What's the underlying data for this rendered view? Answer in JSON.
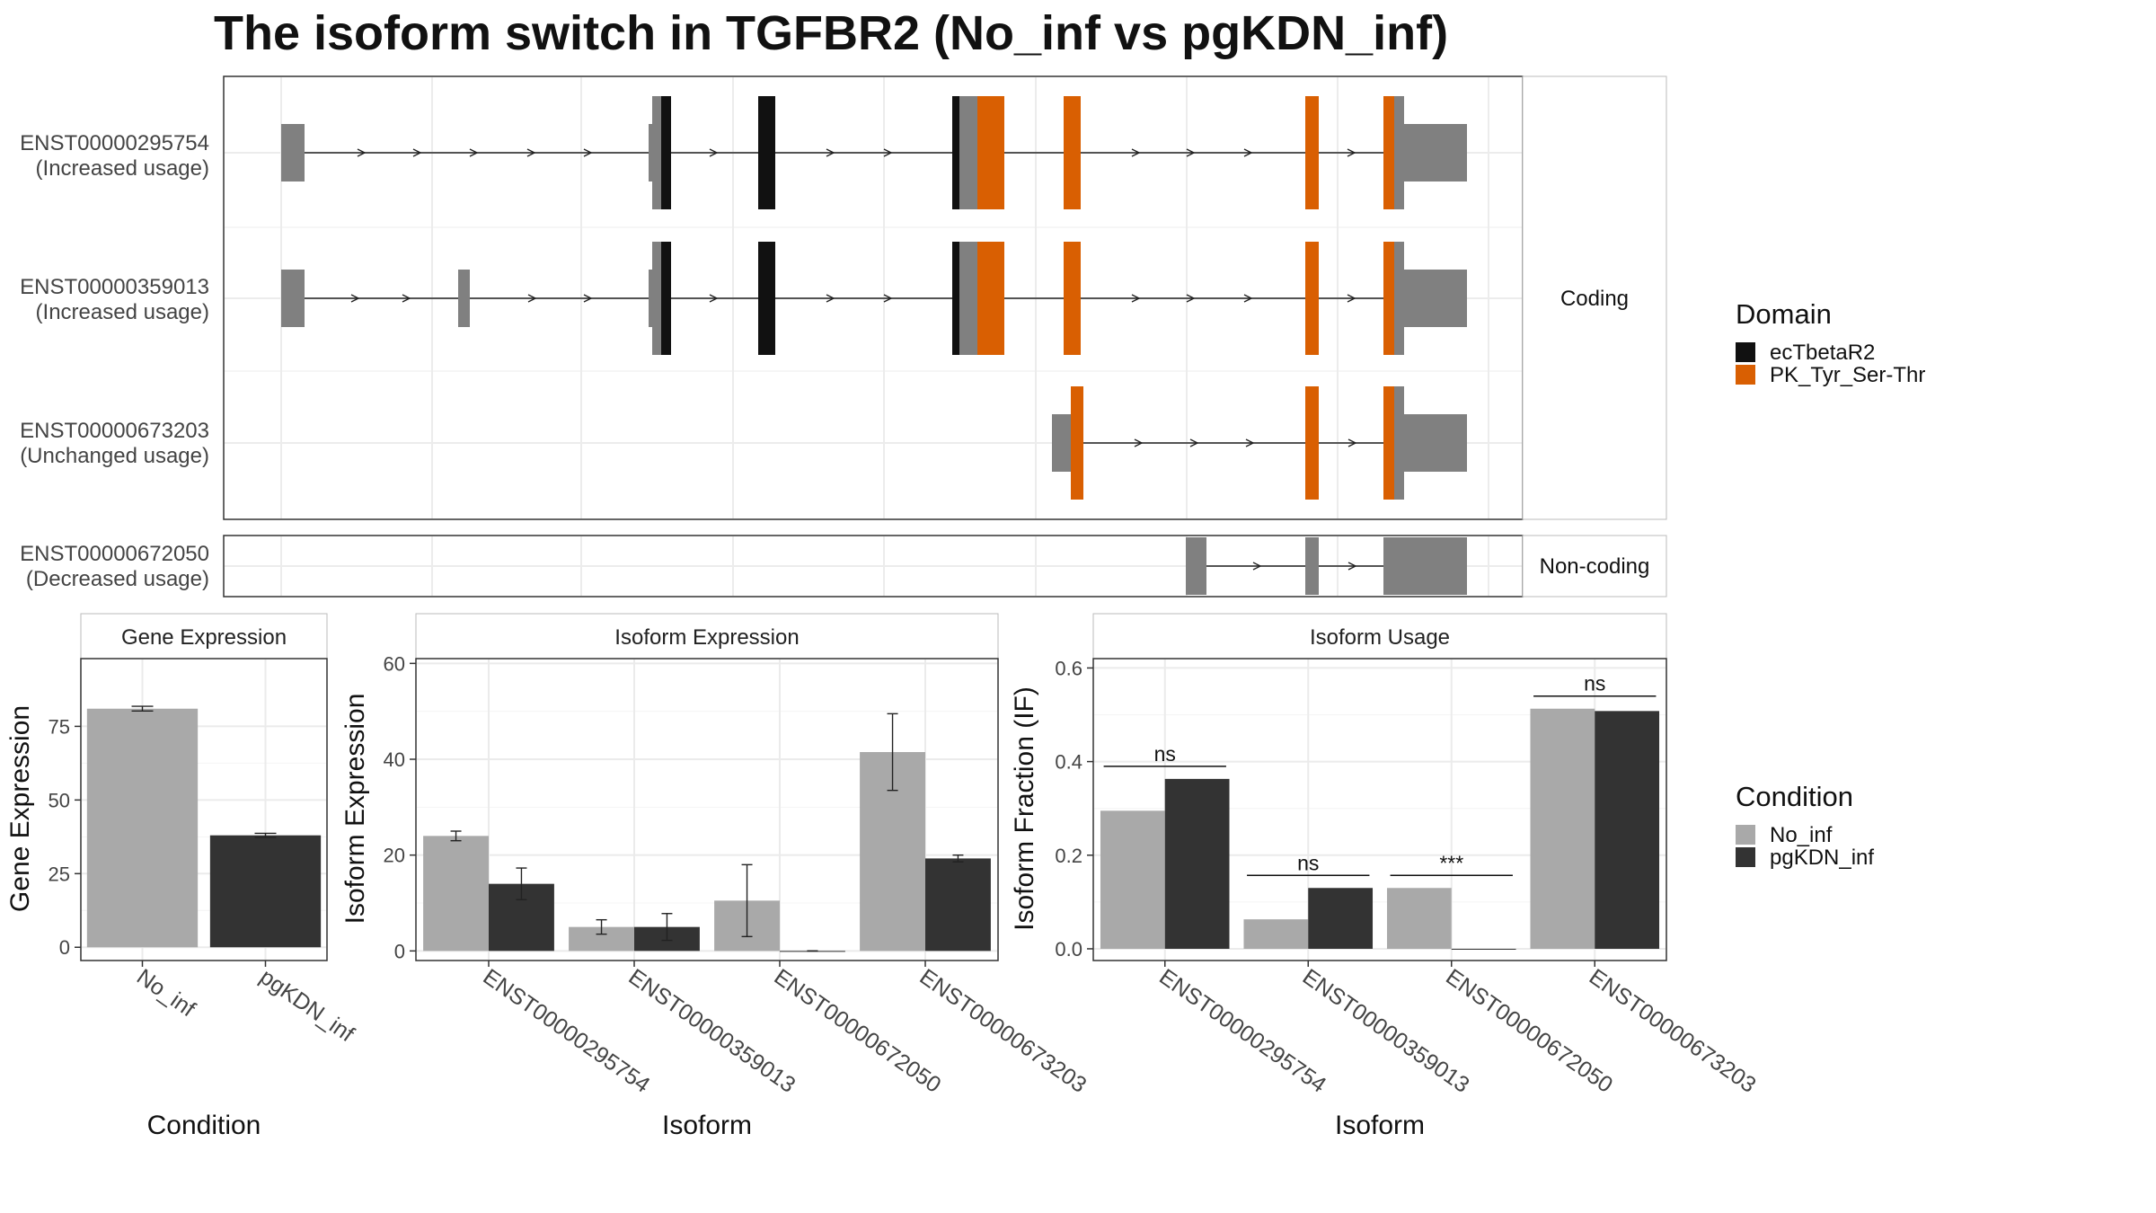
{
  "title": "The isoform switch in TGFBR2 (No_inf vs pgKDN_inf)",
  "colors": {
    "no_inf": "#A9A9A9",
    "pgkdn_inf": "#333333",
    "utr": "#808080",
    "ecTbetaR2": "#111111",
    "PK_Tyr_Ser_Thr": "#D95F02"
  },
  "structure": {
    "coding_strip": "Coding",
    "noncoding_strip": "Non-coding",
    "domain_legend_title": "Domain",
    "domains": [
      "ecTbetaR2",
      "PK_Tyr_Ser-Thr"
    ],
    "isoforms": [
      {
        "id": "ENST00000295754",
        "status": "(Increased usage)",
        "group": "coding"
      },
      {
        "id": "ENST00000359013",
        "status": "(Increased usage)",
        "group": "coding"
      },
      {
        "id": "ENST00000673203",
        "status": "(Unchanged usage)",
        "group": "coding"
      },
      {
        "id": "ENST00000672050",
        "status": "(Decreased usage)",
        "group": "noncoding"
      }
    ]
  },
  "condition_legend": {
    "title": "Condition",
    "items": [
      "No_inf",
      "pgKDN_inf"
    ]
  },
  "chart_data": [
    {
      "type": "bar",
      "title": "Gene Expression",
      "xlabel": "Condition",
      "ylabel": "Gene Expression",
      "categories": [
        "No_inf",
        "pgKDN_inf"
      ],
      "values": [
        81,
        38
      ],
      "errors": [
        0.8,
        0.7
      ],
      "yticks": [
        0,
        25,
        50,
        75
      ],
      "ylim": [
        -4.5,
        98
      ]
    },
    {
      "type": "bar",
      "title": "Isoform Expression",
      "xlabel": "Isoform",
      "ylabel": "Isoform Expression",
      "categories": [
        "ENST00000295754",
        "ENST00000359013",
        "ENST00000672050",
        "ENST00000673203"
      ],
      "series": [
        {
          "name": "No_inf",
          "values": [
            24,
            5,
            10.5,
            41.5
          ],
          "errors": [
            1,
            1.5,
            7.5,
            8
          ]
        },
        {
          "name": "pgKDN_inf",
          "values": [
            14,
            5,
            0,
            19.3
          ],
          "errors": [
            3.3,
            2.8,
            0,
            0.7
          ]
        }
      ],
      "yticks": [
        0,
        20,
        40,
        60
      ],
      "ylim": [
        -2,
        61
      ]
    },
    {
      "type": "bar",
      "title": "Isoform Usage",
      "xlabel": "Isoform",
      "ylabel": "Isoform Fraction (IF)",
      "categories": [
        "ENST00000295754",
        "ENST00000359013",
        "ENST00000672050",
        "ENST00000673203"
      ],
      "series": [
        {
          "name": "No_inf",
          "values": [
            0.295,
            0.063,
            0.13,
            0.513
          ]
        },
        {
          "name": "pgKDN_inf",
          "values": [
            0.363,
            0.13,
            0,
            0.508
          ]
        }
      ],
      "significance": [
        "ns",
        "ns",
        "***",
        "ns"
      ],
      "yticks": [
        0.0,
        0.2,
        0.4,
        0.6
      ],
      "ylim": [
        -0.025,
        0.62
      ]
    }
  ]
}
